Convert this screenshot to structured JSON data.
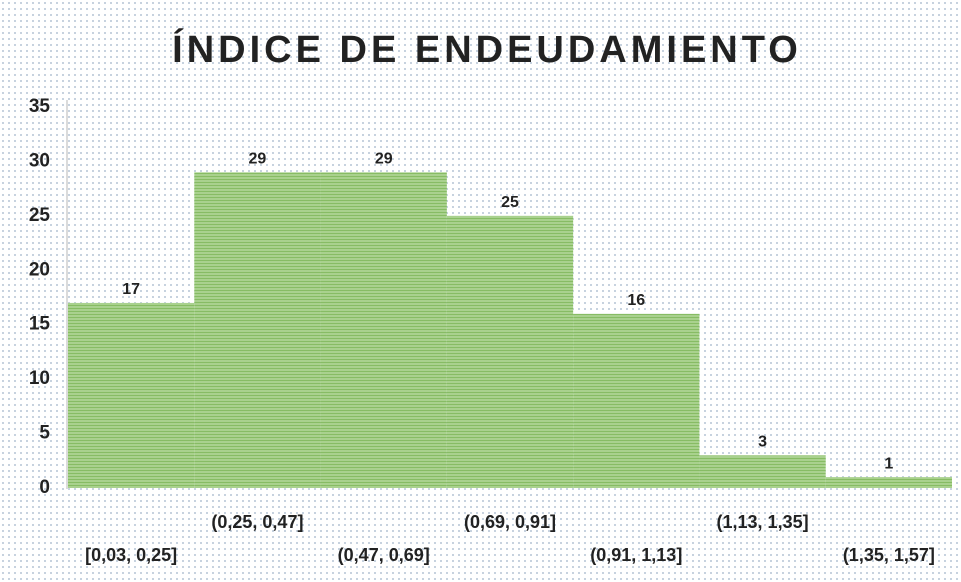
{
  "chart_data": {
    "type": "bar",
    "title": "ÍNDICE DE ENDEUDAMIENTO",
    "categories": [
      "[0,03, 0,25]",
      "(0,25, 0,47]",
      "(0,47, 0,69]",
      "(0,69, 0,91]",
      "(0,91, 1,13]",
      "(1,13, 1,35]",
      "(1,35, 1,57]"
    ],
    "values": [
      17,
      29,
      29,
      25,
      16,
      3,
      1
    ],
    "color": "#a9d18e",
    "ylim": [
      0,
      35
    ],
    "yticks": [
      0,
      5,
      10,
      15,
      20,
      25,
      30,
      35
    ],
    "grid": false
  }
}
